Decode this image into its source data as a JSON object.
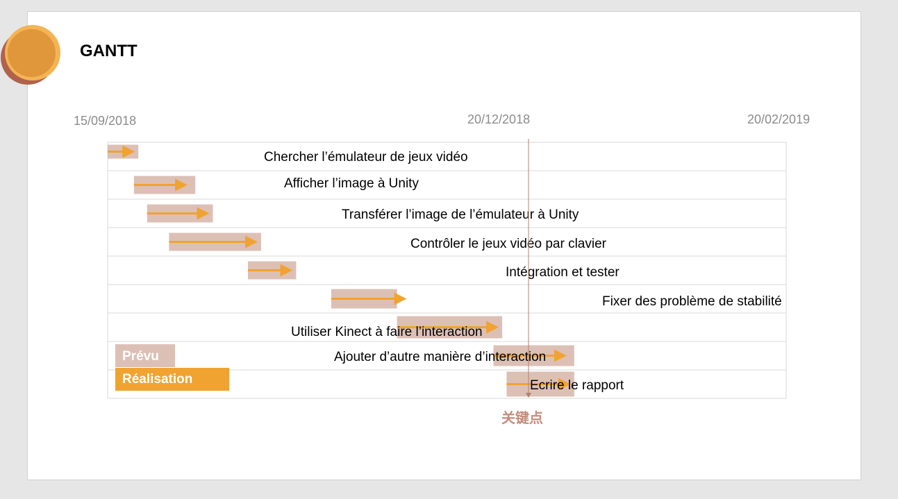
{
  "slide": {
    "title": "GANTT"
  },
  "chart_data": {
    "type": "gantt",
    "dates": [
      "15/09/2018",
      "20/12/2018",
      "20/02/2019"
    ],
    "milestone": {
      "label": "关键点",
      "date": "20/12/2018"
    },
    "legend": {
      "planned": "Prévu",
      "actual": "Réalisation"
    },
    "colors": {
      "planned": "#dcc0b6",
      "actual": "#f0a330",
      "milestone": "#b08070",
      "grid": "#d9d9d9"
    },
    "tasks": [
      {
        "name": "Chercher l’émulateur de jeux vidéo",
        "planned": [
          "15/09/2018",
          "22/09/2018"
        ],
        "actual": [
          "15/09/2018",
          "22/09/2018"
        ]
      },
      {
        "name": "Afficher l’image à Unity",
        "planned": [
          "21/09/2018",
          "05/10/2018"
        ],
        "actual": [
          "21/09/2018",
          "04/10/2018"
        ]
      },
      {
        "name": "Transférer l’image de l’émulateur à Unity",
        "planned": [
          "24/09/2018",
          "09/10/2018"
        ],
        "actual": [
          "24/09/2018",
          "09/10/2018"
        ]
      },
      {
        "name": "Contrôler le jeux vidéo par clavier",
        "planned": [
          "29/09/2018",
          "20/10/2018"
        ],
        "actual": [
          "29/09/2018",
          "20/10/2018"
        ]
      },
      {
        "name": "Intégration et tester",
        "planned": [
          "17/10/2018",
          "28/10/2018"
        ],
        "actual": [
          "17/10/2018",
          "28/10/2018"
        ]
      },
      {
        "name": "Fixer des problème de stabilité",
        "planned": [
          "05/11/2018",
          "20/11/2018"
        ],
        "actual": [
          "05/11/2018",
          "23/11/2018"
        ]
      },
      {
        "name": "Utiliser Kinect à faire l’interaction",
        "planned": [
          "20/11/2018",
          "14/12/2018"
        ],
        "actual": [
          "20/11/2018",
          "14/12/2018"
        ]
      },
      {
        "name": "Ajouter d’autre manière d’interaction",
        "planned": [
          "12/12/2018",
          "31/12/2018"
        ],
        "actual": [
          "12/12/2018",
          "30/12/2018"
        ]
      },
      {
        "name": "Ecrire le rapport",
        "planned": [
          "15/12/2018",
          "31/12/2018"
        ],
        "actual": [
          "15/12/2018",
          "31/12/2018"
        ]
      }
    ]
  }
}
